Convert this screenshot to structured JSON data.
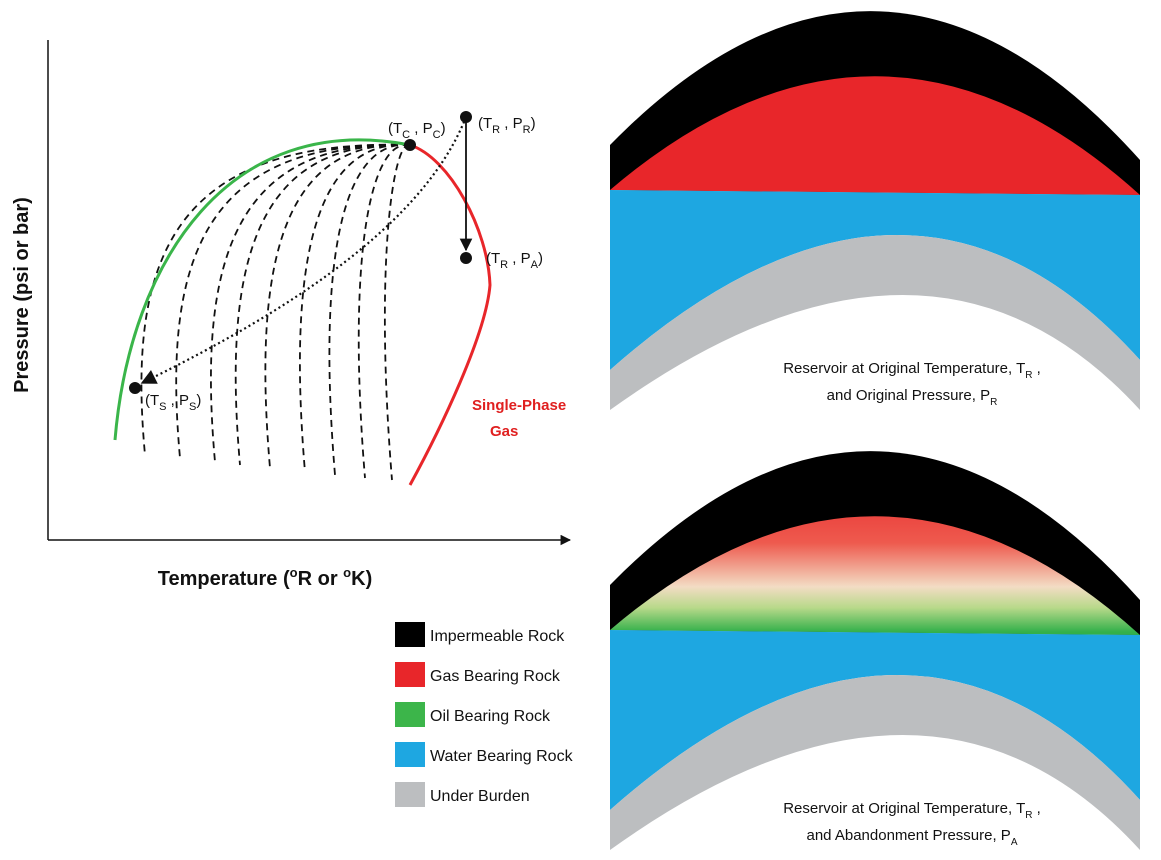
{
  "axes": {
    "y_label": "Pressure (psi or bar)",
    "x_label": [
      "Temperature (",
      "o",
      "R or ",
      "o",
      "K)"
    ]
  },
  "points": [
    {
      "label": [
        "(T",
        "C",
        " , P",
        "C",
        ")"
      ]
    },
    {
      "label": [
        "(T",
        "R",
        " , P",
        "R",
        ")"
      ]
    },
    {
      "label": [
        "(T",
        "R",
        " , P",
        "A",
        ")"
      ]
    },
    {
      "label": [
        "(T",
        "S",
        " , P",
        "S",
        ")"
      ]
    }
  ],
  "region_label": [
    "Single-Phase",
    "Gas"
  ],
  "legend": [
    {
      "label": "Impermeable Rock",
      "color": "#000000"
    },
    {
      "label": "Gas Bearing Rock",
      "color": "#e8262a"
    },
    {
      "label": "Oil Bearing Rock",
      "color": "#3cb54a"
    },
    {
      "label": "Water Bearing Rock",
      "color": "#1ea7e1"
    },
    {
      "label": "Under Burden",
      "color": "#bcbec0"
    }
  ],
  "panels": [
    {
      "caption": [
        [
          "Reservoir at Original Temperature, T",
          "R",
          " ,"
        ],
        [
          "and Original Pressure, P",
          "R"
        ]
      ]
    },
    {
      "caption": [
        [
          "Reservoir at Original Temperature, T",
          "R",
          " ,"
        ],
        [
          "and Abandonment Pressure, P",
          "A"
        ]
      ]
    }
  ]
}
